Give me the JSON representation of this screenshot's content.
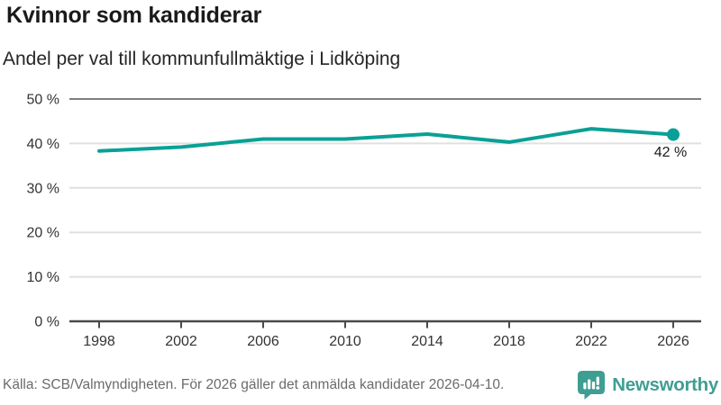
{
  "header": {
    "title": "Kvinnor som kandiderar",
    "subtitle": "Andel per val till kommunfullmäktige i Lidköping"
  },
  "chart_data": {
    "type": "line",
    "title": "Kvinnor som kandiderar",
    "subtitle": "Andel per val till kommunfullmäktige i Lidköping",
    "x": [
      "1998",
      "2002",
      "2006",
      "2010",
      "2014",
      "2018",
      "2022",
      "2026"
    ],
    "series": [
      {
        "values": [
          38.3,
          39.2,
          41.0,
          41.0,
          42.1,
          40.3,
          43.3,
          42.0
        ]
      }
    ],
    "ylim": [
      0,
      50
    ],
    "yticks": [
      0,
      10,
      20,
      30,
      40,
      50
    ],
    "ytick_suffix": " %",
    "grid": "horizontal",
    "legend": "none",
    "last_value_label": "42 %",
    "line_color": "#0aa096"
  },
  "footer": {
    "source": "Källa: SCB/Valmyndigheten. För 2026 gäller det anmälda kandidater 2026-04-10.",
    "brand": "Newsworthy"
  },
  "colors": {
    "accent_teal": "#0aa096",
    "logo_teal": "#3f9e92",
    "grid_light": "#e0e0e0",
    "grid_top": "#7f7f7f",
    "axis_dark": "#4a4a4a",
    "axis_text": "#333333",
    "text_dark": "#1a1a1a",
    "text_muted": "#6b6b6b"
  }
}
